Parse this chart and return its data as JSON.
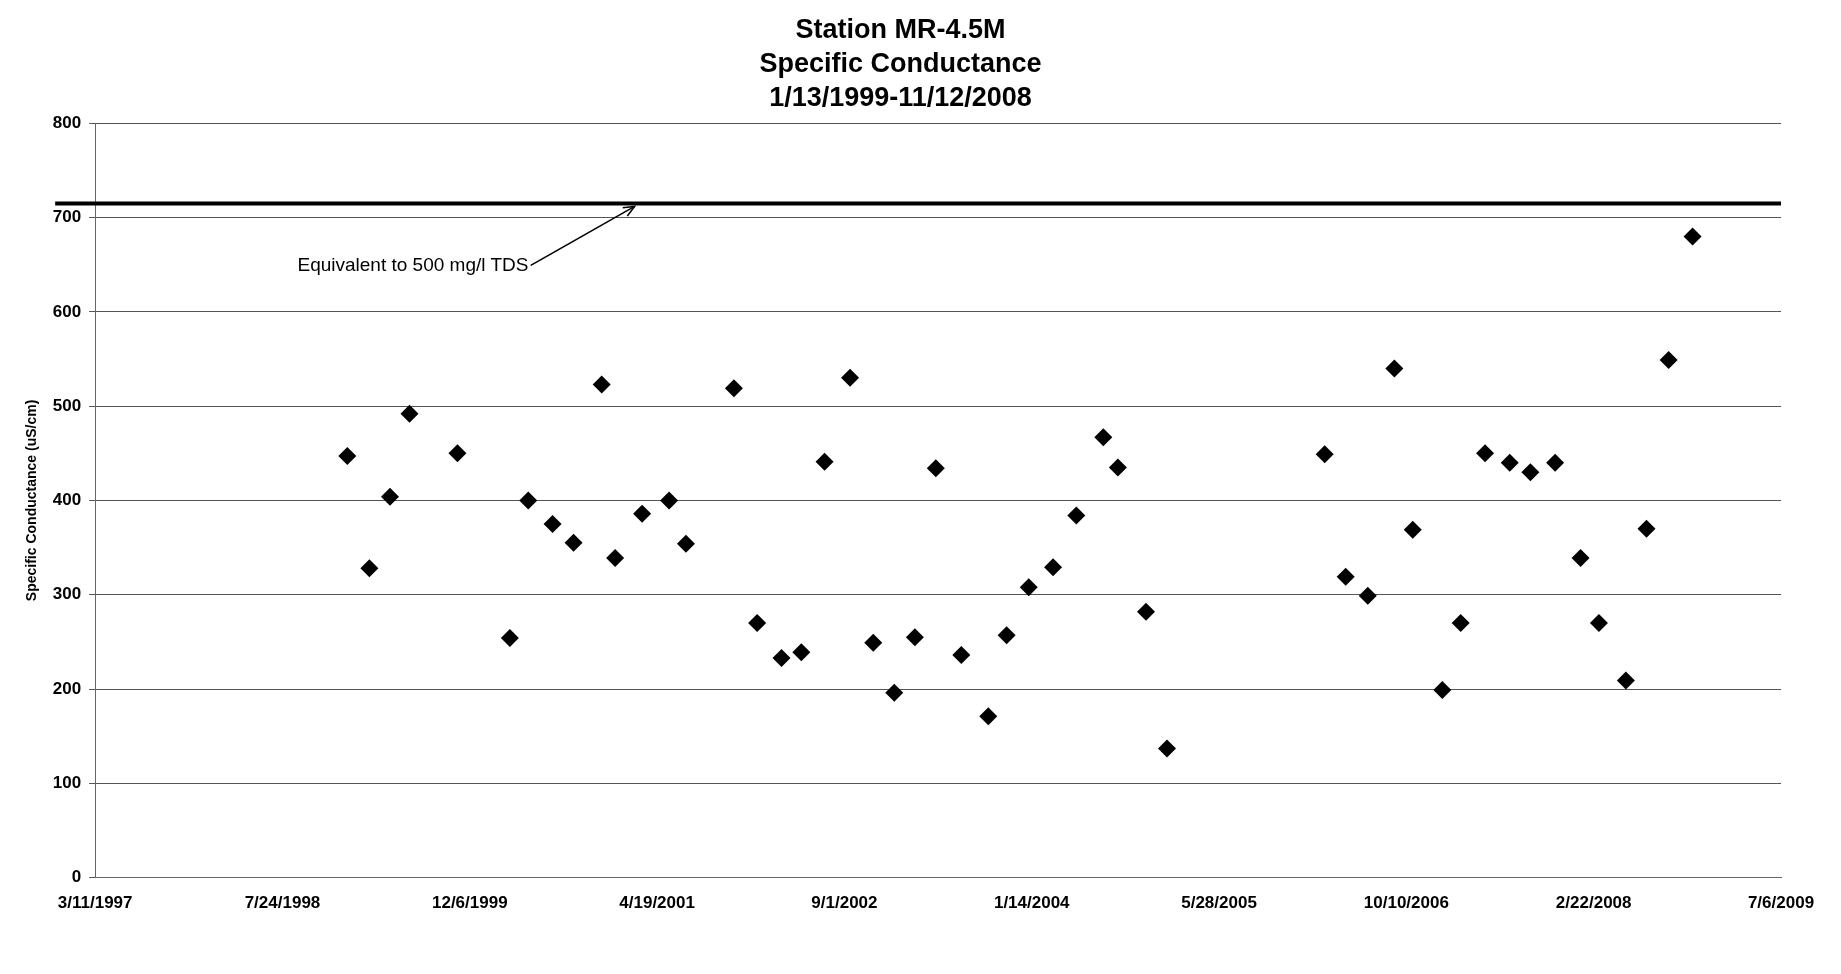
{
  "chart_data": {
    "type": "scatter",
    "title": "Station MR-4.5M\nSpecific Conductance\n1/13/1999-11/12/2008",
    "ylabel": "Specific Conductance (uS/cm)",
    "x": [
      "1999-01-13",
      "1999-03-13",
      "1999-05-07",
      "1999-06-28",
      "1999-11-03",
      "2000-03-22",
      "2000-05-10",
      "2000-07-14",
      "2000-09-08",
      "2000-11-22",
      "2000-12-28",
      "2001-03-10",
      "2001-05-21",
      "2001-07-05",
      "2001-11-10",
      "2002-01-11",
      "2002-03-17",
      "2002-05-09",
      "2002-07-10",
      "2002-09-16",
      "2002-11-17",
      "2003-01-12",
      "2003-03-08",
      "2003-05-03",
      "2003-07-10",
      "2003-09-20",
      "2003-11-08",
      "2004-01-06",
      "2004-03-11",
      "2004-05-12",
      "2004-07-23",
      "2004-08-31",
      "2004-11-14",
      "2005-01-09",
      "2006-03-06",
      "2006-05-01",
      "2006-06-29",
      "2006-09-08",
      "2006-10-27",
      "2007-01-14",
      "2007-03-04",
      "2007-05-08",
      "2007-07-13",
      "2007-09-06",
      "2007-11-11",
      "2008-01-18",
      "2008-03-07",
      "2008-05-18",
      "2008-07-12",
      "2008-09-09",
      "2008-11-12"
    ],
    "series": [
      {
        "color": "#000000",
        "values": [
          447,
          328,
          404,
          492,
          450,
          254,
          400,
          375,
          355,
          523,
          339,
          386,
          400,
          354,
          519,
          270,
          233,
          239,
          441,
          530,
          249,
          196,
          255,
          434,
          236,
          171,
          257,
          308,
          329,
          384,
          467,
          435,
          282,
          137,
          449,
          319,
          299,
          540,
          369,
          199,
          270,
          450,
          440,
          430,
          440,
          339,
          270,
          209,
          370,
          549,
          680
        ]
      }
    ],
    "xlim": [
      "1997-03-11",
      "2009-07-06"
    ],
    "xticks": [
      {
        "value": "1997-03-11",
        "label": "3/11/1997"
      },
      {
        "value": "1998-07-24",
        "label": "7/24/1998"
      },
      {
        "value": "1999-12-06",
        "label": "12/6/1999"
      },
      {
        "value": "2001-04-19",
        "label": "4/19/2001"
      },
      {
        "value": "2002-09-01",
        "label": "9/1/2002"
      },
      {
        "value": "2004-01-14",
        "label": "1/14/2004"
      },
      {
        "value": "2005-05-28",
        "label": "5/28/2005"
      },
      {
        "value": "2006-10-10",
        "label": "10/10/2006"
      },
      {
        "value": "2008-02-22",
        "label": "2/22/2008"
      },
      {
        "value": "2009-07-06",
        "label": "7/6/2009"
      }
    ],
    "ylim": [
      0,
      800
    ],
    "yticks": [
      0,
      100,
      200,
      300,
      400,
      500,
      600,
      700,
      800
    ],
    "ref_lines": [
      {
        "axis": "y",
        "value": 715,
        "label": "Equivalent to 500 mg/l TDS",
        "color": "#000000"
      }
    ],
    "grid": "y",
    "legend": false,
    "marker": "diamond"
  }
}
